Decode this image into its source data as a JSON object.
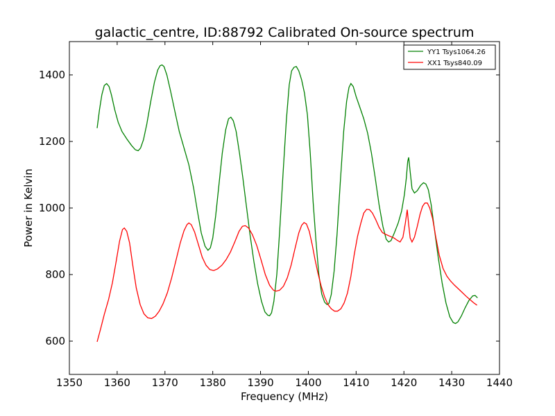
{
  "chart_data": {
    "type": "line",
    "title": "galactic_centre, ID:88792 Calibrated On-source spectrum",
    "xlabel": "Frequency (MHz)",
    "ylabel": "Power in Kelvin",
    "xlim": [
      1350,
      1440
    ],
    "ylim": [
      500,
      1500
    ],
    "xticks": [
      1350,
      1360,
      1370,
      1380,
      1390,
      1400,
      1410,
      1420,
      1430,
      1440
    ],
    "yticks": [
      600,
      800,
      1000,
      1200,
      1400
    ],
    "grid": false,
    "legend_position": "top-right",
    "series": [
      {
        "name": "YY1 Tsys1064.26",
        "color": "#008000",
        "points": [
          [
            1355.8,
            1240
          ],
          [
            1356.3,
            1295
          ],
          [
            1356.8,
            1340
          ],
          [
            1357.3,
            1368
          ],
          [
            1357.8,
            1374
          ],
          [
            1358.3,
            1365
          ],
          [
            1358.8,
            1340
          ],
          [
            1359.5,
            1295
          ],
          [
            1360.2,
            1258
          ],
          [
            1361.0,
            1230
          ],
          [
            1362.0,
            1208
          ],
          [
            1363.0,
            1188
          ],
          [
            1363.8,
            1175
          ],
          [
            1364.4,
            1172
          ],
          [
            1364.9,
            1180
          ],
          [
            1365.5,
            1205
          ],
          [
            1366.2,
            1252
          ],
          [
            1367.0,
            1318
          ],
          [
            1367.8,
            1378
          ],
          [
            1368.5,
            1415
          ],
          [
            1369.0,
            1428
          ],
          [
            1369.4,
            1430
          ],
          [
            1369.8,
            1425
          ],
          [
            1370.4,
            1400
          ],
          [
            1371.2,
            1350
          ],
          [
            1372.0,
            1295
          ],
          [
            1373.0,
            1230
          ],
          [
            1374.0,
            1180
          ],
          [
            1375.0,
            1130
          ],
          [
            1376.0,
            1060
          ],
          [
            1376.8,
            990
          ],
          [
            1377.6,
            925
          ],
          [
            1378.4,
            885
          ],
          [
            1379.0,
            873
          ],
          [
            1379.5,
            880
          ],
          [
            1380.0,
            910
          ],
          [
            1380.6,
            975
          ],
          [
            1381.3,
            1070
          ],
          [
            1382.0,
            1165
          ],
          [
            1382.7,
            1235
          ],
          [
            1383.3,
            1268
          ],
          [
            1383.8,
            1273
          ],
          [
            1384.3,
            1262
          ],
          [
            1384.9,
            1230
          ],
          [
            1385.6,
            1165
          ],
          [
            1386.3,
            1090
          ],
          [
            1387.0,
            1010
          ],
          [
            1387.8,
            920
          ],
          [
            1388.6,
            840
          ],
          [
            1389.4,
            772
          ],
          [
            1390.2,
            720
          ],
          [
            1390.9,
            688
          ],
          [
            1391.5,
            678
          ],
          [
            1391.9,
            676
          ],
          [
            1392.3,
            685
          ],
          [
            1392.8,
            720
          ],
          [
            1393.4,
            800
          ],
          [
            1394.0,
            930
          ],
          [
            1394.7,
            1100
          ],
          [
            1395.4,
            1265
          ],
          [
            1396.0,
            1370
          ],
          [
            1396.5,
            1412
          ],
          [
            1397.0,
            1423
          ],
          [
            1397.5,
            1425
          ],
          [
            1398.0,
            1412
          ],
          [
            1398.6,
            1385
          ],
          [
            1399.2,
            1345
          ],
          [
            1399.8,
            1280
          ],
          [
            1400.4,
            1165
          ],
          [
            1401.0,
            1020
          ],
          [
            1401.6,
            900
          ],
          [
            1402.2,
            800
          ],
          [
            1402.8,
            742
          ],
          [
            1403.4,
            717
          ],
          [
            1403.9,
            710
          ],
          [
            1404.3,
            713
          ],
          [
            1404.8,
            740
          ],
          [
            1405.4,
            810
          ],
          [
            1406.0,
            920
          ],
          [
            1406.7,
            1080
          ],
          [
            1407.4,
            1230
          ],
          [
            1408.0,
            1320
          ],
          [
            1408.5,
            1362
          ],
          [
            1408.9,
            1374
          ],
          [
            1409.4,
            1365
          ],
          [
            1410.0,
            1335
          ],
          [
            1410.8,
            1302
          ],
          [
            1411.6,
            1268
          ],
          [
            1412.4,
            1225
          ],
          [
            1413.2,
            1165
          ],
          [
            1414.0,
            1090
          ],
          [
            1414.8,
            1010
          ],
          [
            1415.6,
            945
          ],
          [
            1416.3,
            906
          ],
          [
            1416.8,
            898
          ],
          [
            1417.3,
            902
          ],
          [
            1418.0,
            925
          ],
          [
            1418.8,
            955
          ],
          [
            1419.5,
            990
          ],
          [
            1420.1,
            1040
          ],
          [
            1420.5,
            1090
          ],
          [
            1420.8,
            1140
          ],
          [
            1421.0,
            1152
          ],
          [
            1421.3,
            1110
          ],
          [
            1421.7,
            1058
          ],
          [
            1422.2,
            1045
          ],
          [
            1422.8,
            1052
          ],
          [
            1423.5,
            1068
          ],
          [
            1424.1,
            1076
          ],
          [
            1424.6,
            1072
          ],
          [
            1425.1,
            1055
          ],
          [
            1425.7,
            1010
          ],
          [
            1426.4,
            935
          ],
          [
            1427.2,
            850
          ],
          [
            1428.0,
            775
          ],
          [
            1428.8,
            715
          ],
          [
            1429.6,
            673
          ],
          [
            1430.3,
            656
          ],
          [
            1430.8,
            653
          ],
          [
            1431.3,
            658
          ],
          [
            1432.0,
            675
          ],
          [
            1432.8,
            700
          ],
          [
            1433.6,
            722
          ],
          [
            1434.4,
            736
          ],
          [
            1434.9,
            737
          ],
          [
            1435.4,
            730
          ]
        ]
      },
      {
        "name": "XX1 Tsys840.09",
        "color": "#ff0000",
        "points": [
          [
            1355.8,
            598
          ],
          [
            1356.5,
            635
          ],
          [
            1357.3,
            680
          ],
          [
            1358.2,
            725
          ],
          [
            1359.0,
            775
          ],
          [
            1359.8,
            840
          ],
          [
            1360.5,
            900
          ],
          [
            1361.1,
            935
          ],
          [
            1361.5,
            940
          ],
          [
            1362.0,
            930
          ],
          [
            1362.6,
            895
          ],
          [
            1363.3,
            825
          ],
          [
            1364.0,
            760
          ],
          [
            1364.8,
            710
          ],
          [
            1365.6,
            682
          ],
          [
            1366.4,
            670
          ],
          [
            1367.2,
            668
          ],
          [
            1368.0,
            675
          ],
          [
            1368.8,
            690
          ],
          [
            1369.6,
            712
          ],
          [
            1370.5,
            745
          ],
          [
            1371.4,
            790
          ],
          [
            1372.3,
            842
          ],
          [
            1373.2,
            895
          ],
          [
            1374.0,
            932
          ],
          [
            1374.6,
            950
          ],
          [
            1375.0,
            955
          ],
          [
            1375.5,
            950
          ],
          [
            1376.2,
            928
          ],
          [
            1377.0,
            890
          ],
          [
            1377.8,
            852
          ],
          [
            1378.6,
            828
          ],
          [
            1379.4,
            815
          ],
          [
            1380.2,
            812
          ],
          [
            1381.0,
            817
          ],
          [
            1381.9,
            828
          ],
          [
            1382.8,
            845
          ],
          [
            1383.7,
            868
          ],
          [
            1384.6,
            898
          ],
          [
            1385.5,
            930
          ],
          [
            1386.2,
            945
          ],
          [
            1386.8,
            947
          ],
          [
            1387.5,
            940
          ],
          [
            1388.3,
            920
          ],
          [
            1389.2,
            888
          ],
          [
            1390.1,
            845
          ],
          [
            1391.0,
            800
          ],
          [
            1391.9,
            768
          ],
          [
            1392.7,
            753
          ],
          [
            1393.3,
            750
          ],
          [
            1394.0,
            753
          ],
          [
            1394.8,
            765
          ],
          [
            1395.6,
            790
          ],
          [
            1396.4,
            828
          ],
          [
            1397.2,
            878
          ],
          [
            1398.0,
            925
          ],
          [
            1398.6,
            948
          ],
          [
            1399.1,
            956
          ],
          [
            1399.6,
            952
          ],
          [
            1400.2,
            930
          ],
          [
            1400.8,
            890
          ],
          [
            1401.4,
            845
          ],
          [
            1402.0,
            805
          ],
          [
            1402.7,
            765
          ],
          [
            1403.4,
            733
          ],
          [
            1404.1,
            710
          ],
          [
            1404.8,
            697
          ],
          [
            1405.5,
            690
          ],
          [
            1406.1,
            690
          ],
          [
            1406.8,
            697
          ],
          [
            1407.5,
            715
          ],
          [
            1408.2,
            745
          ],
          [
            1408.9,
            795
          ],
          [
            1409.6,
            860
          ],
          [
            1410.3,
            915
          ],
          [
            1411.0,
            955
          ],
          [
            1411.6,
            985
          ],
          [
            1412.2,
            996
          ],
          [
            1412.8,
            995
          ],
          [
            1413.4,
            985
          ],
          [
            1414.1,
            965
          ],
          [
            1414.8,
            942
          ],
          [
            1415.5,
            926
          ],
          [
            1416.3,
            920
          ],
          [
            1417.1,
            915
          ],
          [
            1417.9,
            910
          ],
          [
            1418.6,
            903
          ],
          [
            1419.2,
            898
          ],
          [
            1419.8,
            912
          ],
          [
            1420.3,
            955
          ],
          [
            1420.7,
            995
          ],
          [
            1421.0,
            950
          ],
          [
            1421.3,
            910
          ],
          [
            1421.7,
            898
          ],
          [
            1422.2,
            912
          ],
          [
            1422.8,
            945
          ],
          [
            1423.4,
            982
          ],
          [
            1423.9,
            1005
          ],
          [
            1424.4,
            1015
          ],
          [
            1424.9,
            1015
          ],
          [
            1425.4,
            1000
          ],
          [
            1426.0,
            968
          ],
          [
            1426.7,
            910
          ],
          [
            1427.4,
            858
          ],
          [
            1428.2,
            818
          ],
          [
            1429.0,
            795
          ],
          [
            1429.8,
            780
          ],
          [
            1430.6,
            768
          ],
          [
            1431.4,
            757
          ],
          [
            1432.2,
            746
          ],
          [
            1433.0,
            735
          ],
          [
            1433.8,
            725
          ],
          [
            1434.6,
            715
          ],
          [
            1435.3,
            708
          ]
        ]
      }
    ]
  }
}
